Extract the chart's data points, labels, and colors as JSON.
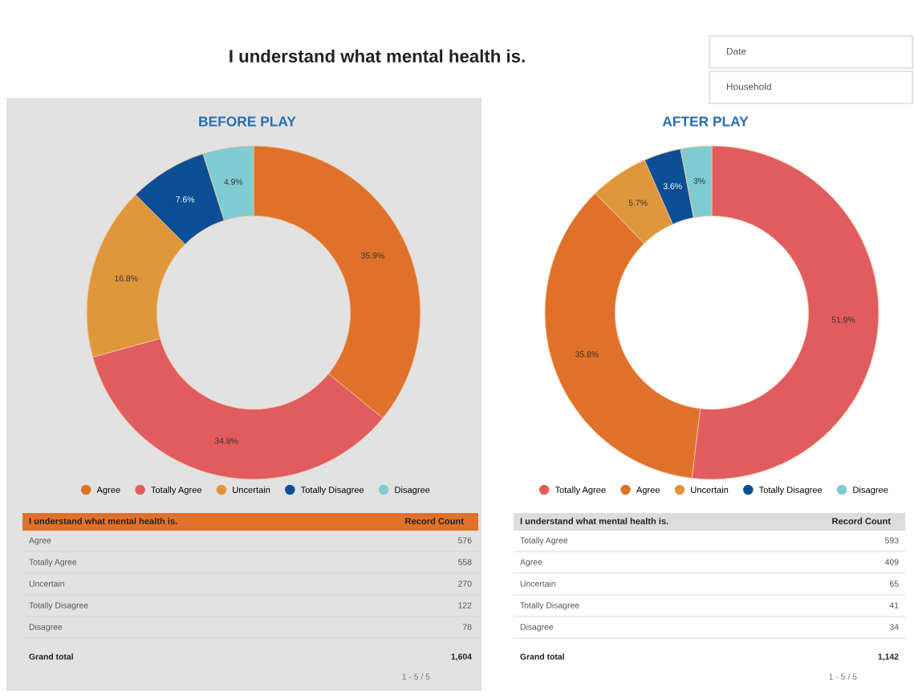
{
  "chart_data": [
    {
      "type": "other",
      "title": "I understand what mental health is.",
      "annotations": [
        "Date",
        "Household"
      ]
    },
    {
      "type": "donut",
      "title": "BEFORE PLAY",
      "categories": [
        "Agree",
        "Totally Agree",
        "Uncertain",
        "Totally Disagree",
        "Disagree"
      ],
      "values": [
        35.9,
        34.8,
        16.8,
        7.6,
        4.9
      ],
      "colors": [
        "#e0712a",
        "#e05c5f",
        "#e0963a",
        "#0a4f96",
        "#7fccd3"
      ],
      "value_labels": [
        "35.9%",
        "34.8%",
        "16.8%",
        "7.6%",
        "4.9%"
      ],
      "legend": "bottom",
      "annotations": [
        "I understand what mental health is.",
        "Record Count",
        "576",
        "558",
        "270",
        "122",
        "78",
        "Grand total",
        "1,604",
        "1 - 5 / 5"
      ]
    },
    {
      "type": "donut",
      "title": "AFTER PLAY",
      "categories": [
        "Totally Agree",
        "Agree",
        "Uncertain",
        "Totally Disagree",
        "Disagree"
      ],
      "values": [
        51.9,
        35.8,
        5.7,
        3.6,
        3
      ],
      "colors": [
        "#e05c5f",
        "#e0712a",
        "#e0963a",
        "#0a4f96",
        "#7fccd3"
      ],
      "value_labels": [
        "51.9%",
        "35.8%",
        "5.7%",
        "3.6%",
        "3%"
      ],
      "legend": "bottom",
      "annotations": [
        "I understand what mental health is.",
        "Record Count",
        "593",
        "409",
        "65",
        "41",
        "34",
        "Grand total",
        "1,142",
        "1 - 5 / 5"
      ]
    }
  ]
}
